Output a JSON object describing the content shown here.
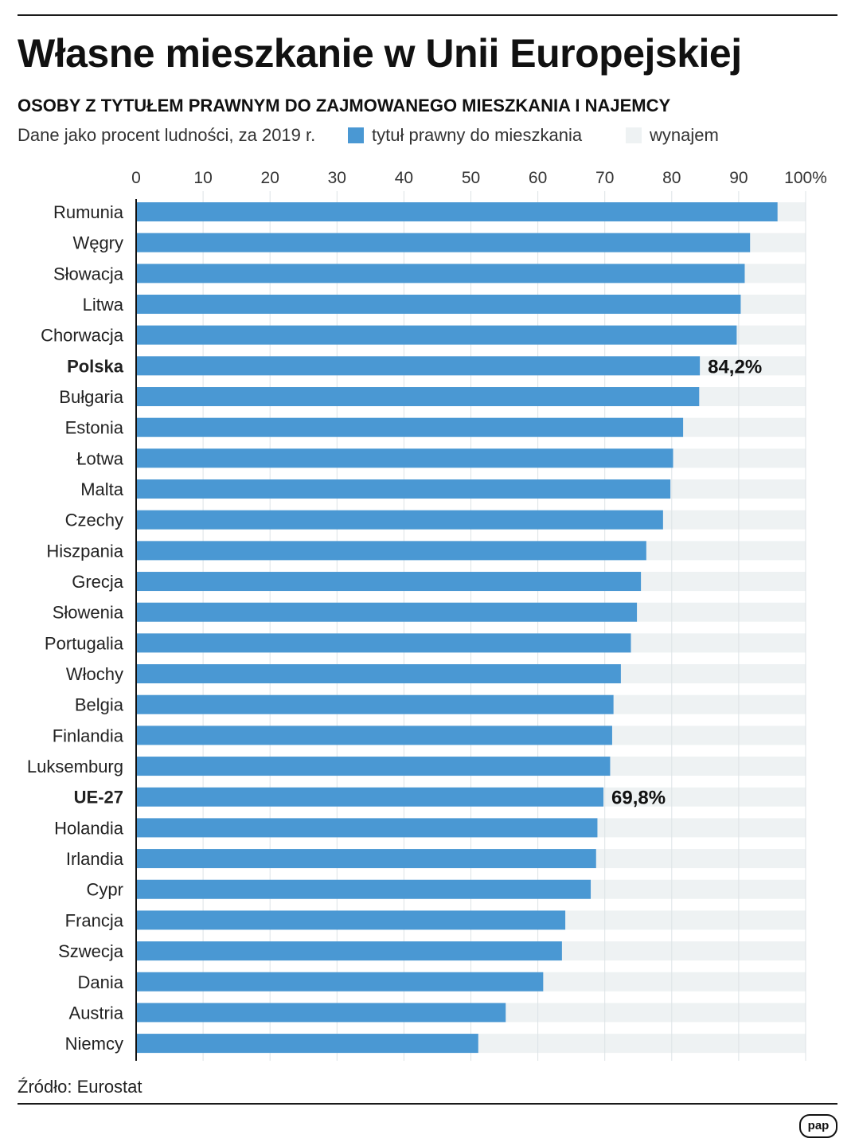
{
  "title": "Własne mieszkanie w Unii Europejskiej",
  "subtitle": "OSOBY Z TYTUŁEM PRAWNYM DO ZAJMOWANEGO MIESZKANIA I NAJEMCY",
  "description": "Dane jako procent ludności, za 2019 r.",
  "source": "Źródło: Eurostat",
  "logo": "pap",
  "colors": {
    "owned": "#4a98d3",
    "rented": "#eef2f3"
  },
  "chart_data": {
    "type": "bar",
    "orientation": "horizontal",
    "stacked": true,
    "xlim": [
      0,
      100
    ],
    "xticks": [
      "0",
      "10",
      "20",
      "30",
      "40",
      "50",
      "60",
      "70",
      "80",
      "90",
      "100%"
    ],
    "legend": [
      "tytuł prawny do mieszkania",
      "wynajem"
    ],
    "legend_placement": "top",
    "categories": [
      "Rumunia",
      "Węgry",
      "Słowacja",
      "Litwa",
      "Chorwacja",
      "Polska",
      "Bułgaria",
      "Estonia",
      "Łotwa",
      "Malta",
      "Czechy",
      "Hiszpania",
      "Grecja",
      "Słowenia",
      "Portugalia",
      "Włochy",
      "Belgia",
      "Finlandia",
      "Luksemburg",
      "UE-27",
      "Holandia",
      "Irlandia",
      "Cypr",
      "Francja",
      "Szwecja",
      "Dania",
      "Austria",
      "Niemcy"
    ],
    "bold_categories": [
      "Polska",
      "UE-27"
    ],
    "series": [
      {
        "name": "tytuł prawny do mieszkania",
        "values": [
          95.8,
          91.7,
          90.9,
          90.3,
          89.7,
          84.2,
          84.1,
          81.7,
          80.2,
          79.8,
          78.7,
          76.2,
          75.4,
          74.8,
          73.9,
          72.4,
          71.3,
          71.1,
          70.8,
          69.8,
          68.9,
          68.7,
          67.9,
          64.1,
          63.6,
          60.8,
          55.2,
          51.1
        ]
      },
      {
        "name": "wynajem",
        "values": [
          4.2,
          8.3,
          9.1,
          9.7,
          10.3,
          15.8,
          15.9,
          18.3,
          19.8,
          20.2,
          21.3,
          23.8,
          24.6,
          25.2,
          26.1,
          27.6,
          28.7,
          28.9,
          29.2,
          30.2,
          31.1,
          31.3,
          32.1,
          35.9,
          36.4,
          39.2,
          44.8,
          48.9
        ]
      }
    ],
    "annotations": {
      "Polska": "84,2%",
      "UE-27": "69,8%"
    }
  }
}
